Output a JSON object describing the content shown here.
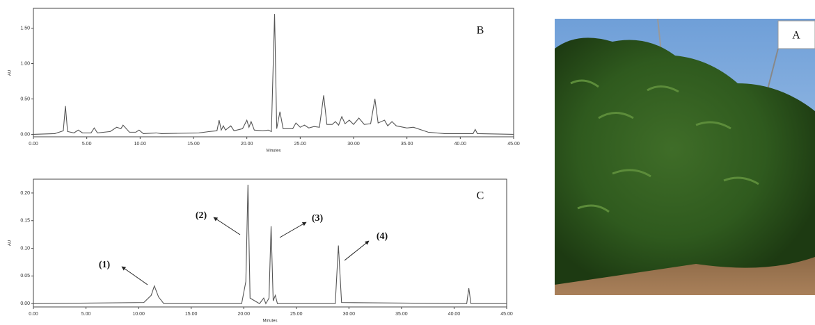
{
  "chart_data": [
    {
      "type": "line",
      "panel_label": "B",
      "x_label": "Minutes",
      "y_label": "AU",
      "color": "#555555",
      "xlim": [
        0,
        45
      ],
      "ylim": [
        -0.035,
        1.78
      ],
      "xticks": [
        {
          "value": 0,
          "label": "0.00"
        },
        {
          "value": 5,
          "label": "5.00"
        },
        {
          "value": 10,
          "label": "10.00"
        },
        {
          "value": 15,
          "label": "15.00"
        },
        {
          "value": 20,
          "label": "20.00"
        },
        {
          "value": 25,
          "label": "25.00"
        },
        {
          "value": 30,
          "label": "30.00"
        },
        {
          "value": 35,
          "label": "35.00"
        },
        {
          "value": 40,
          "label": "40.00"
        },
        {
          "value": 45,
          "label": "45.00"
        }
      ],
      "yticks": [
        {
          "value": 0,
          "label": "0.00"
        },
        {
          "value": 0.5,
          "label": "0.50"
        },
        {
          "value": 1,
          "label": "1.00"
        },
        {
          "value": 1.5,
          "label": "1.50"
        }
      ],
      "x": [
        0,
        2,
        2.8,
        3.0,
        3.2,
        3.8,
        4.2,
        4.6,
        5.4,
        5.7,
        6.0,
        7.2,
        7.8,
        8.2,
        8.4,
        9.0,
        9.6,
        9.9,
        10.3,
        11.5,
        12,
        15.5,
        16.5,
        17.2,
        17.4,
        17.6,
        17.8,
        18.0,
        18.5,
        18.8,
        19.6,
        20.0,
        20.2,
        20.4,
        20.7,
        21.5,
        22.0,
        22.3,
        22.6,
        22.8,
        23.1,
        23.4,
        24.3,
        24.6,
        25.0,
        25.4,
        25.8,
        26.3,
        26.8,
        27.2,
        27.5,
        28.0,
        28.3,
        28.6,
        28.9,
        29.2,
        29.6,
        30.0,
        30.5,
        31.0,
        31.6,
        32.0,
        32.3,
        32.9,
        33.2,
        33.6,
        34.0,
        35.0,
        35.6,
        37,
        38.5,
        41.2,
        41.4,
        41.6,
        45
      ],
      "values": [
        0,
        0.01,
        0.05,
        0.4,
        0.04,
        0.02,
        0.06,
        0.02,
        0.02,
        0.09,
        0.02,
        0.04,
        0.1,
        0.08,
        0.13,
        0.03,
        0.03,
        0.06,
        0.01,
        0.02,
        0.01,
        0.02,
        0.04,
        0.05,
        0.2,
        0.06,
        0.12,
        0.06,
        0.12,
        0.05,
        0.08,
        0.2,
        0.1,
        0.18,
        0.06,
        0.05,
        0.06,
        0.04,
        1.7,
        0.08,
        0.32,
        0.08,
        0.08,
        0.16,
        0.1,
        0.13,
        0.09,
        0.11,
        0.1,
        0.55,
        0.14,
        0.14,
        0.18,
        0.13,
        0.25,
        0.15,
        0.2,
        0.14,
        0.23,
        0.14,
        0.15,
        0.5,
        0.16,
        0.2,
        0.12,
        0.18,
        0.12,
        0.09,
        0.1,
        0.03,
        0.01,
        0.01,
        0.07,
        0.01,
        0
      ]
    },
    {
      "type": "line",
      "panel_label": "C",
      "x_label": "Minutes",
      "y_label": "AU",
      "color": "#555555",
      "xlim": [
        0,
        45
      ],
      "ylim": [
        -0.006,
        0.225
      ],
      "xticks": [
        {
          "value": 0,
          "label": "0.00"
        },
        {
          "value": 5,
          "label": "5.00"
        },
        {
          "value": 10,
          "label": "10.00"
        },
        {
          "value": 15,
          "label": "15.00"
        },
        {
          "value": 20,
          "label": "20.00"
        },
        {
          "value": 25,
          "label": "25.00"
        },
        {
          "value": 30,
          "label": "30.00"
        },
        {
          "value": 35,
          "label": "35.00"
        },
        {
          "value": 40,
          "label": "40.00"
        },
        {
          "value": 45,
          "label": "45.00"
        }
      ],
      "yticks": [
        {
          "value": 0,
          "label": "0.00"
        },
        {
          "value": 0.05,
          "label": "0.05"
        },
        {
          "value": 0.1,
          "label": "0.10"
        },
        {
          "value": 0.15,
          "label": "0.15"
        },
        {
          "value": 0.2,
          "label": "0.20"
        }
      ],
      "x": [
        0,
        10.5,
        11.2,
        11.5,
        11.9,
        12.4,
        19.8,
        20.2,
        20.4,
        20.6,
        21.5,
        21.9,
        22.1,
        22.4,
        22.6,
        22.8,
        23.0,
        23.2,
        28.7,
        29.0,
        29.3,
        41.2,
        41.4,
        41.6,
        45
      ],
      "values": [
        0,
        0.002,
        0.015,
        0.032,
        0.012,
        0,
        0,
        0.04,
        0.215,
        0.01,
        0,
        0.01,
        0,
        0.01,
        0.14,
        0.005,
        0.015,
        0,
        0,
        0.105,
        0.002,
        0,
        0.028,
        0,
        0
      ],
      "annotations": [
        "(1)",
        "(2)",
        "(3)",
        "(4)"
      ]
    }
  ],
  "photo_label": "A"
}
